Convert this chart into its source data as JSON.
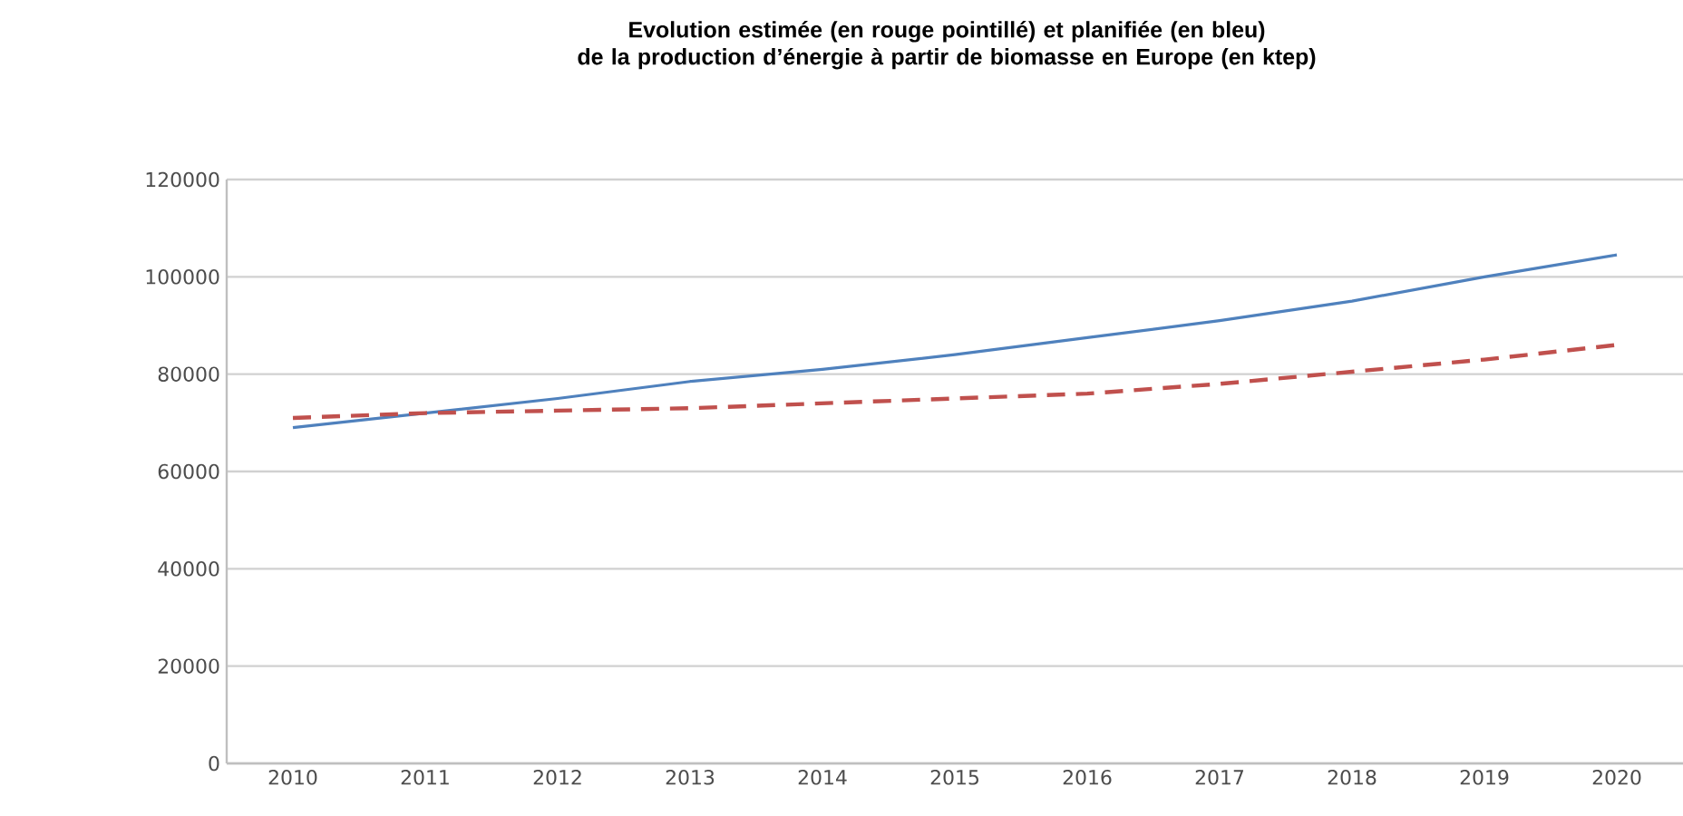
{
  "chart_data": {
    "type": "line",
    "title": "Evolution estimée (en rouge pointillé) et planifiée (en bleu)\nde la production d’énergie à partir de biomasse en Europe (en ktep)",
    "categories": [
      "2010",
      "2011",
      "2012",
      "2013",
      "2014",
      "2015",
      "2016",
      "2017",
      "2018",
      "2019",
      "2020"
    ],
    "series": [
      {
        "color": "#4f81bd",
        "line_style": "solid",
        "values": [
          69000,
          72000,
          75000,
          78500,
          81000,
          84000,
          87500,
          91000,
          95000,
          100000,
          104500
        ]
      },
      {
        "color": "#c0504d",
        "line_style": "dashed",
        "values": [
          71000,
          72000,
          72500,
          73000,
          74000,
          75000,
          76000,
          78000,
          80500,
          83000,
          86000
        ]
      }
    ],
    "ylim": [
      0,
      120000
    ],
    "yticks": [
      0,
      20000,
      40000,
      60000,
      80000,
      100000,
      120000
    ],
    "grid": "y"
  }
}
